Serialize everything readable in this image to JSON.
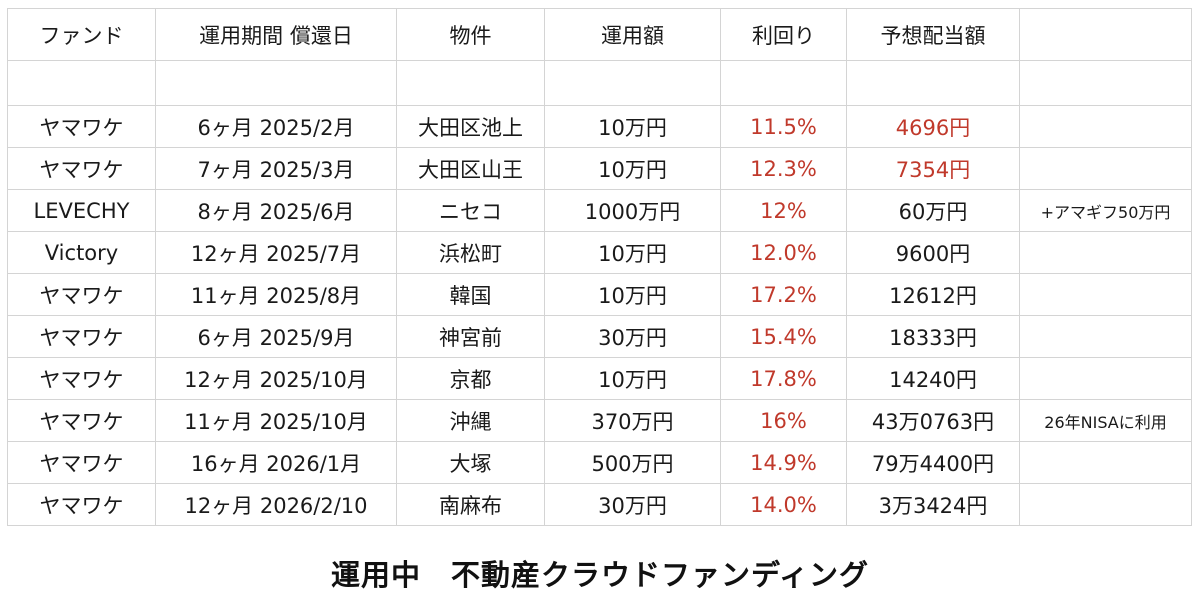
{
  "table": {
    "headers": [
      "ファンド",
      "運用期間 償還日",
      "物件",
      "運用額",
      "利回り",
      "予想配当額",
      ""
    ],
    "rows": [
      {
        "fund": "ヤマワケ",
        "period": "6ヶ月 2025/2月",
        "property": "大田区池上",
        "amount": "10万円",
        "yield": "11.5%",
        "dividend": "4696円",
        "note": "",
        "dividend_red": true
      },
      {
        "fund": "ヤマワケ",
        "period": "7ヶ月 2025/3月",
        "property": "大田区山王",
        "amount": "10万円",
        "yield": "12.3%",
        "dividend": "7354円",
        "note": "",
        "dividend_red": true
      },
      {
        "fund": "LEVECHY",
        "period": "8ヶ月 2025/6月",
        "property": "ニセコ",
        "amount": "1000万円",
        "yield": "12%",
        "dividend": "60万円",
        "note": "+アマギフ50万円",
        "dividend_red": false
      },
      {
        "fund": "Victory",
        "period": "12ヶ月 2025/7月",
        "property": "浜松町",
        "amount": "10万円",
        "yield": "12.0%",
        "dividend": "9600円",
        "note": "",
        "dividend_red": false
      },
      {
        "fund": "ヤマワケ",
        "period": "11ヶ月 2025/8月",
        "property": "韓国",
        "amount": "10万円",
        "yield": "17.2%",
        "dividend": "12612円",
        "note": "",
        "dividend_red": false
      },
      {
        "fund": "ヤマワケ",
        "period": "6ヶ月 2025/9月",
        "property": "神宮前",
        "amount": "30万円",
        "yield": "15.4%",
        "dividend": "18333円",
        "note": "",
        "dividend_red": false
      },
      {
        "fund": "ヤマワケ",
        "period": "12ヶ月 2025/10月",
        "property": "京都",
        "amount": "10万円",
        "yield": "17.8%",
        "dividend": "14240円",
        "note": "",
        "dividend_red": false
      },
      {
        "fund": "ヤマワケ",
        "period": "11ヶ月 2025/10月",
        "property": "沖縄",
        "amount": "370万円",
        "yield": "16%",
        "dividend": "43万0763円",
        "note": "26年NISAに利用",
        "dividend_red": false
      },
      {
        "fund": "ヤマワケ",
        "period": "16ヶ月 2026/1月",
        "property": "大塚",
        "amount": "500万円",
        "yield": "14.9%",
        "dividend": "79万4400円",
        "note": "",
        "dividend_red": false
      },
      {
        "fund": "ヤマワケ",
        "period": "12ヶ月 2026/2/10",
        "property": "南麻布",
        "amount": "30万円",
        "yield": "14.0%",
        "dividend": "3万3424円",
        "note": "",
        "dividend_red": false
      }
    ]
  },
  "caption": "運用中　不動産クラウドファンディング",
  "colors": {
    "highlight_red": "#c0392b",
    "border": "#d4d4d4",
    "text": "#1a1a1a"
  }
}
